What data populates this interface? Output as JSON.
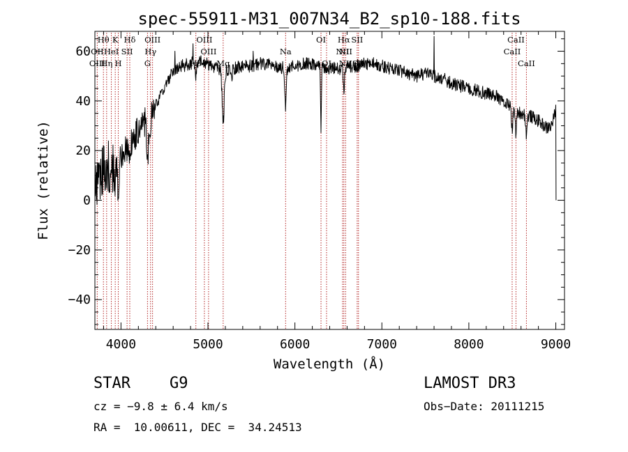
{
  "chart_data": {
    "type": "line",
    "title": "spec-55911-M31_007N34_B2_sp10-188.fits",
    "xlabel": "Wavelength (Å)",
    "ylabel": "Flux (relative)",
    "xlim": [
      3700,
      9100
    ],
    "ylim": [
      -52,
      68
    ],
    "xticks": [
      4000,
      5000,
      6000,
      7000,
      8000,
      9000
    ],
    "yticks": [
      -40,
      -20,
      0,
      20,
      40,
      60
    ],
    "x_minor_step": 200,
    "y_minor_step": 5,
    "line_color": "#000000",
    "marker_color": "#b22222",
    "continuum": [
      [
        3700,
        8
      ],
      [
        3800,
        12
      ],
      [
        3900,
        14
      ],
      [
        4000,
        18
      ],
      [
        4100,
        22
      ],
      [
        4200,
        28
      ],
      [
        4300,
        33
      ],
      [
        4400,
        38
      ],
      [
        4500,
        45
      ],
      [
        4600,
        52
      ],
      [
        4700,
        54
      ],
      [
        4800,
        55
      ],
      [
        4900,
        56
      ],
      [
        5000,
        55
      ],
      [
        5100,
        53
      ],
      [
        5200,
        52
      ],
      [
        5300,
        53
      ],
      [
        5400,
        54
      ],
      [
        5500,
        54
      ],
      [
        5600,
        55
      ],
      [
        5700,
        55
      ],
      [
        5800,
        54
      ],
      [
        5900,
        53
      ],
      [
        6000,
        54
      ],
      [
        6100,
        55
      ],
      [
        6200,
        55
      ],
      [
        6300,
        54
      ],
      [
        6400,
        53
      ],
      [
        6500,
        53
      ],
      [
        6600,
        53
      ],
      [
        6700,
        54
      ],
      [
        6800,
        55
      ],
      [
        6900,
        55
      ],
      [
        7000,
        54
      ],
      [
        7100,
        53
      ],
      [
        7200,
        52
      ],
      [
        7300,
        51
      ],
      [
        7400,
        50
      ],
      [
        7500,
        51
      ],
      [
        7600,
        50
      ],
      [
        7700,
        49
      ],
      [
        7800,
        47
      ],
      [
        7900,
        46
      ],
      [
        8000,
        45
      ],
      [
        8100,
        44
      ],
      [
        8200,
        43
      ],
      [
        8300,
        42
      ],
      [
        8400,
        40
      ],
      [
        8500,
        37
      ],
      [
        8600,
        35
      ],
      [
        8700,
        34
      ],
      [
        8800,
        32
      ],
      [
        8900,
        29
      ],
      [
        8950,
        30
      ],
      [
        9000,
        36
      ]
    ],
    "absorption_features": [
      {
        "center": 3934,
        "depth": 15,
        "width": 8
      },
      {
        "center": 3969,
        "depth": 14,
        "width": 8
      },
      {
        "center": 4101,
        "depth": 6,
        "width": 6
      },
      {
        "center": 4305,
        "depth": 18,
        "width": 10
      },
      {
        "center": 4340,
        "depth": 6,
        "width": 6
      },
      {
        "center": 4861,
        "depth": 5,
        "width": 6
      },
      {
        "center": 5175,
        "depth": 20,
        "width": 12
      },
      {
        "center": 5270,
        "depth": 4,
        "width": 8
      },
      {
        "center": 5892,
        "depth": 15,
        "width": 8
      },
      {
        "center": 6300,
        "depth": 25,
        "width": 5
      },
      {
        "center": 6563,
        "depth": 10,
        "width": 6
      },
      {
        "center": 8498,
        "depth": 8,
        "width": 8
      },
      {
        "center": 8542,
        "depth": 9,
        "width": 8
      },
      {
        "center": 8662,
        "depth": 8,
        "width": 8
      }
    ],
    "spikes": [
      {
        "wavelength": 5520,
        "value": 60
      },
      {
        "wavelength": 5700,
        "value": 57
      },
      {
        "wavelength": 7600,
        "value": 66
      },
      {
        "wavelength": 4620,
        "value": 60
      },
      {
        "wavelength": 4830,
        "value": 63
      },
      {
        "wavelength": 9003,
        "value": 0
      }
    ],
    "noise": {
      "blue_end": 3950,
      "blue_amp": 11,
      "red_amp": 2.6
    },
    "line_markers": [
      {
        "label": "Hθ",
        "wavelength": 3798,
        "row": 0
      },
      {
        "label": "OII",
        "wavelength": 3727,
        "row": 1
      },
      {
        "label": "OIII",
        "wavelength": 3727,
        "row": 2
      },
      {
        "label": "Hη",
        "wavelength": 3835,
        "row": 2
      },
      {
        "label": "K",
        "wavelength": 3934,
        "row": 0
      },
      {
        "label": "HeI",
        "wavelength": 3889,
        "row": 1
      },
      {
        "label": "SII",
        "wavelength": 4070,
        "row": 1
      },
      {
        "label": "H",
        "wavelength": 3969,
        "row": 2
      },
      {
        "label": "Hδ",
        "wavelength": 4101,
        "row": 0
      },
      {
        "label": "OIII",
        "wavelength": 4363,
        "row": 0
      },
      {
        "label": "Hγ",
        "wavelength": 4340,
        "row": 1
      },
      {
        "label": "G",
        "wavelength": 4305,
        "row": 2
      },
      {
        "label": "Hβ",
        "wavelength": 4861,
        "row": 2
      },
      {
        "label": "OIII",
        "wavelength": 4959,
        "row": 0
      },
      {
        "label": "OIII",
        "wavelength": 5007,
        "row": 1
      },
      {
        "label": "Mg",
        "wavelength": 5175,
        "row": 2
      },
      {
        "label": "Na",
        "wavelength": 5893,
        "row": 1
      },
      {
        "label": "OI",
        "wavelength": 6300,
        "row": 0
      },
      {
        "label": "OI",
        "wavelength": 6364,
        "row": 2
      },
      {
        "label": "Hα",
        "wavelength": 6563,
        "row": 0
      },
      {
        "label": "SII",
        "wavelength": 6716,
        "row": 0
      },
      {
        "label": "NII",
        "wavelength": 6548,
        "row": 1
      },
      {
        "label": "NII",
        "wavelength": 6583,
        "row": 1
      },
      {
        "label": "NII",
        "wavelength": 6583,
        "row": 2
      },
      {
        "label": "SII",
        "wavelength": 6731,
        "row": 2
      },
      {
        "label": "CaII",
        "wavelength": 8542,
        "row": 0
      },
      {
        "label": "CaII",
        "wavelength": 8498,
        "row": 1
      },
      {
        "label": "CaII",
        "wavelength": 8662,
        "row": 2
      }
    ]
  },
  "footer": {
    "object_type": "STAR",
    "subclass": "G9",
    "survey": "LAMOST DR3",
    "redshift": "cz = −9.8 ± 6.4 km/s",
    "obs_date": "Obs−Date: 20111215",
    "coords": "RA =  10.00611, DEC =  34.24513"
  }
}
